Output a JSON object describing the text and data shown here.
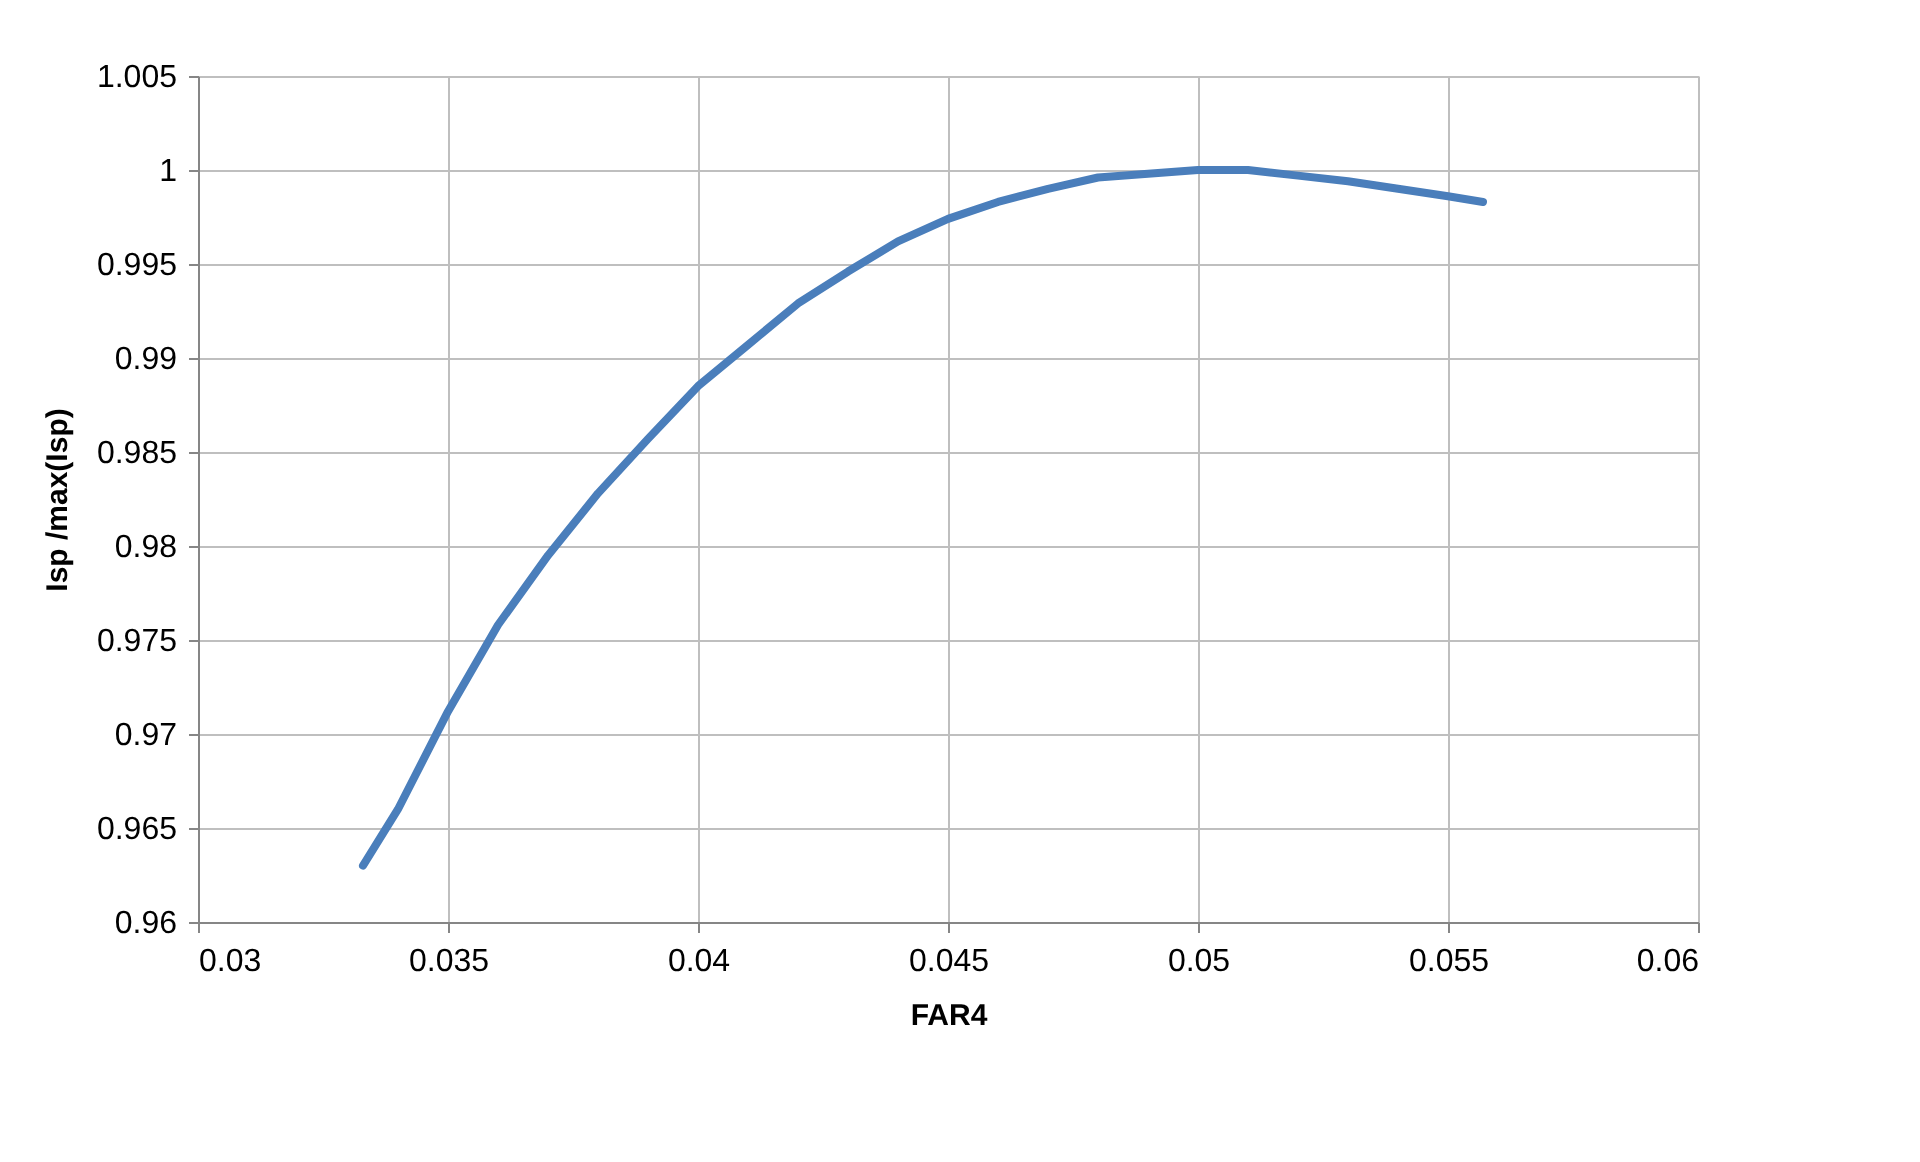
{
  "chart_data": {
    "type": "line",
    "xlabel": "FAR4",
    "ylabel": "Isp /max(Isp)",
    "x": [
      0.0333,
      0.034,
      0.035,
      0.036,
      0.037,
      0.038,
      0.039,
      0.04,
      0.041,
      0.042,
      0.043,
      0.044,
      0.045,
      0.046,
      0.047,
      0.048,
      0.049,
      0.05,
      0.051,
      0.052,
      0.053,
      0.054,
      0.055,
      0.0557
    ],
    "series": [
      {
        "color": "#4a7ebb",
        "values": [
          0.963,
          0.966,
          0.9712,
          0.9758,
          0.9795,
          0.9828,
          0.9857,
          0.9885,
          0.9907,
          0.9929,
          0.9946,
          0.9962,
          0.9974,
          0.9983,
          0.999,
          0.9996,
          0.9998,
          1.0,
          1.0,
          0.9997,
          0.9994,
          0.999,
          0.9986,
          0.9983
        ]
      }
    ],
    "xlim": [
      0.03,
      0.06
    ],
    "xticks": [
      0.03,
      0.035,
      0.04,
      0.045,
      0.05,
      0.055,
      0.06
    ],
    "ylim": [
      0.96,
      1.005
    ],
    "yticks": [
      0.96,
      0.965,
      0.97,
      0.975,
      0.98,
      0.985,
      0.99,
      0.995,
      1,
      1.005
    ],
    "grid": true,
    "marker": "none",
    "line_style": "solid"
  }
}
